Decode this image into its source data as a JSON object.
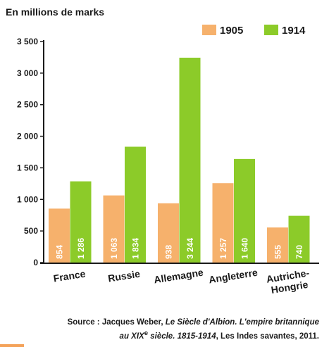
{
  "chart_data": {
    "type": "bar",
    "unit_title": "En millions de marks",
    "categories": [
      "France",
      "Russie",
      "Allemagne",
      "Angleterre",
      "Autriche-Hongrie"
    ],
    "category_lines": [
      [
        "France"
      ],
      [
        "Russie"
      ],
      [
        "Allemagne"
      ],
      [
        "Angleterre"
      ],
      [
        "Autriche-",
        "Hongrie"
      ]
    ],
    "series": [
      {
        "name": "1905",
        "color": "#f6b16c",
        "values": [
          854,
          1063,
          938,
          1257,
          555
        ],
        "labels": [
          "854",
          "1 063",
          "938",
          "1 257",
          "555"
        ]
      },
      {
        "name": "1914",
        "color": "#8ccb29",
        "values": [
          1286,
          1834,
          3244,
          1640,
          740
        ],
        "labels": [
          "1 286",
          "1 834",
          "3 244",
          "1 640",
          "740"
        ]
      }
    ],
    "ylim": [
      0,
      3500
    ],
    "yticks": [
      0,
      500,
      1000,
      1500,
      2000,
      2500,
      3000,
      3500
    ],
    "ytick_labels": [
      "0",
      "500",
      "1 000",
      "1 500",
      "2 000",
      "2 500",
      "3 000",
      "3 500"
    ],
    "legend_position": "top-right",
    "grid": false
  },
  "source": {
    "prefix": "Source : Jacques Weber, ",
    "book_title": "Le Siècle d'Albion. L'empire britannique",
    "line2_italic_a": "au XIX",
    "line2_sup": "e",
    "line2_italic_b": " siècle. 1815-1914",
    "suffix": ", Les Indes savantes, 2011."
  }
}
